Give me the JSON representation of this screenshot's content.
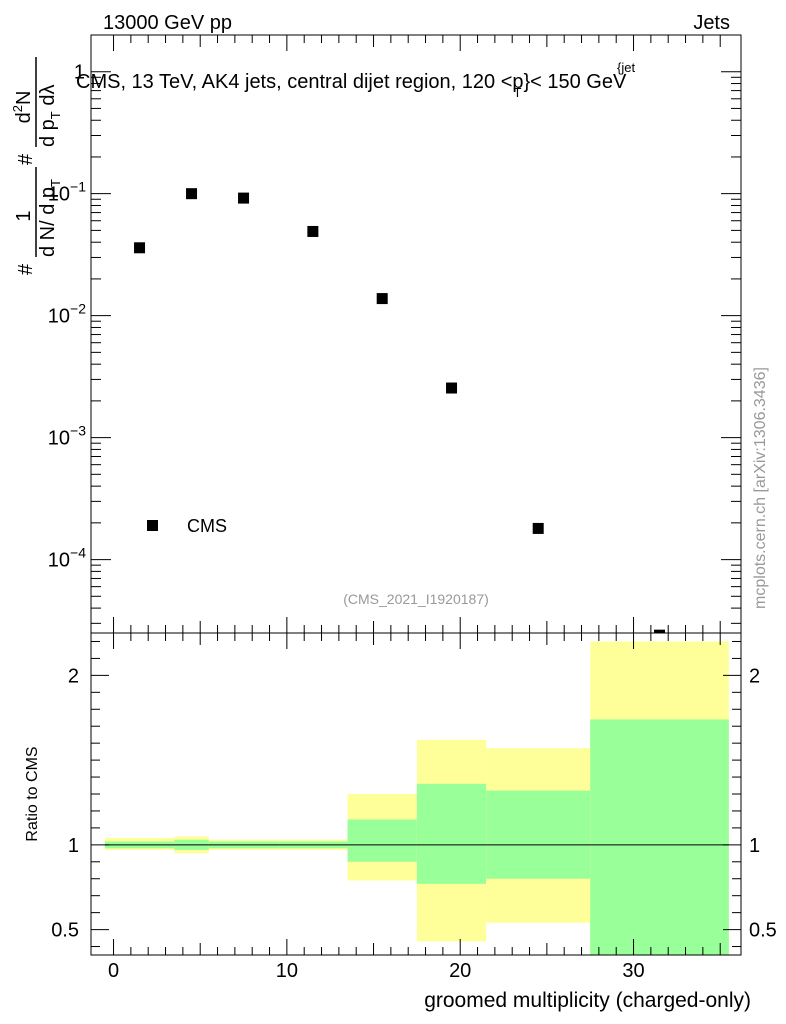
{
  "header": {
    "left": "13000 GeV pp",
    "right": "Jets"
  },
  "plot_title": "CMS, 13 TeV, AK4 jets, central dijet region, 120 <p",
  "plot_title_sup": "{jet",
  "plot_title_sub": "T",
  "plot_title_tail": "}< 150 GeV",
  "analysis_tag": "(CMS_2021_I1920187)",
  "watermark": "mcplots.cern.ch [arXiv:1306.3436]",
  "upper_y_label": {
    "num1": "1",
    "den1": "d N/ d p",
    "den1_sub": "T",
    "num2": "d",
    "num2_sup": "2",
    "num2_tail": "N",
    "den2": "d p",
    "den2_sub": "T",
    "den2_tail": " dλ",
    "hash1": "#",
    "hash2": "#"
  },
  "legend": {
    "label": "CMS"
  },
  "chart_data": [
    {
      "type": "scatter",
      "panel": "main",
      "yscale": "log",
      "xlim": [
        -1.3,
        36.2
      ],
      "ylim": [
        2.5e-05,
        2
      ],
      "yticks": [
        {
          "value": 1,
          "label": "1"
        },
        {
          "value": 0.1,
          "label": "10",
          "sup": "−1"
        },
        {
          "value": 0.01,
          "label": "10",
          "sup": "−2"
        },
        {
          "value": 0.001,
          "label": "10",
          "sup": "−3"
        },
        {
          "value": 0.0001,
          "label": "10",
          "sup": "−4"
        }
      ],
      "series": [
        {
          "name": "CMS",
          "marker": "square",
          "x": [
            1.5,
            4.5,
            7.5,
            11.5,
            15.5,
            19.5,
            24.5,
            31.5
          ],
          "y": [
            0.036,
            0.1,
            0.092,
            0.049,
            0.0138,
            0.00255,
            0.00018,
            2.4e-05
          ]
        }
      ]
    },
    {
      "type": "area",
      "panel": "ratio",
      "ylabel": "Ratio to CMS",
      "xlabel": "groomed multiplicity (charged-only)",
      "xlim": [
        -1.3,
        36.2
      ],
      "ylim": [
        0.35,
        2.25
      ],
      "xticks": [
        0,
        10,
        20,
        30
      ],
      "yticks": [
        0.5,
        1,
        2
      ],
      "reference_line": 1,
      "bins": [
        {
          "lo": -0.5,
          "hi": 3.5,
          "yellow": [
            0.97,
            1.04
          ],
          "green": [
            0.98,
            1.02
          ]
        },
        {
          "lo": 3.5,
          "hi": 5.5,
          "yellow": [
            0.95,
            1.05
          ],
          "green": [
            0.97,
            1.03
          ]
        },
        {
          "lo": 5.5,
          "hi": 9.5,
          "yellow": [
            0.97,
            1.03
          ],
          "green": [
            0.98,
            1.02
          ]
        },
        {
          "lo": 9.5,
          "hi": 13.5,
          "yellow": [
            0.97,
            1.03
          ],
          "green": [
            0.98,
            1.02
          ]
        },
        {
          "lo": 13.5,
          "hi": 17.5,
          "yellow": [
            0.79,
            1.3
          ],
          "green": [
            0.9,
            1.15
          ]
        },
        {
          "lo": 17.5,
          "hi": 21.5,
          "yellow": [
            0.43,
            1.62
          ],
          "green": [
            0.77,
            1.36
          ]
        },
        {
          "lo": 21.5,
          "hi": 27.5,
          "yellow": [
            0.54,
            1.57
          ],
          "green": [
            0.8,
            1.32
          ]
        },
        {
          "lo": 27.5,
          "hi": 35.5,
          "yellow": [
            0.35,
            2.2
          ],
          "green": [
            0.35,
            1.74
          ]
        }
      ],
      "colors": {
        "yellow": "#ffff99",
        "green": "#99ff99"
      }
    }
  ]
}
